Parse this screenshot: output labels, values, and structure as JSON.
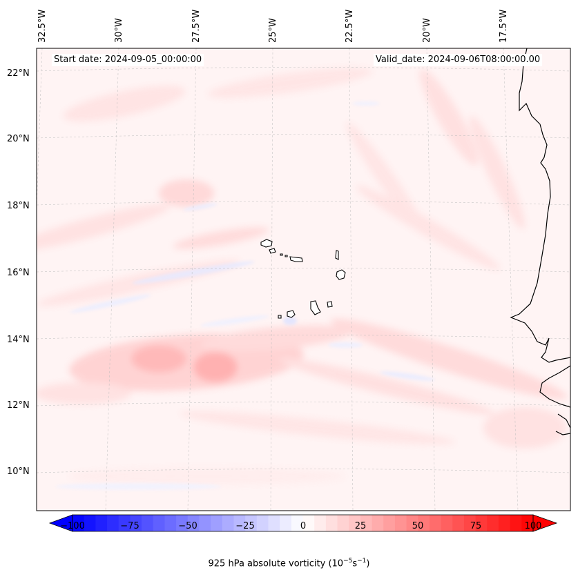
{
  "map": {
    "start_label": "Start date: 2024-09-05_00:00:00",
    "valid_label": "Valid_date: 2024-09-06T08:00:00.00",
    "lon_labels": [
      "32.5°W",
      "30°W",
      "27.5°W",
      "25°W",
      "22.5°W",
      "20°W",
      "17.5°W"
    ],
    "lat_labels": [
      "22°N",
      "20°N",
      "18°N",
      "16°N",
      "14°N",
      "12°N",
      "10°N"
    ],
    "field": "925 hPa absolute vorticity",
    "features": [
      "Cabo Verde islands",
      "West African coastline"
    ]
  },
  "colorbar": {
    "ticks": [
      "−100",
      "−75",
      "−50",
      "−25",
      "0",
      "25",
      "50",
      "75",
      "100"
    ],
    "min": -100,
    "max": 100,
    "label_main": "925 hPa absolute vorticity (10",
    "label_exp1": "−5",
    "label_mid": "s",
    "label_exp2": "−1",
    "label_end": ")"
  },
  "colors": {
    "negative": "#0000ff",
    "zero": "#ffffff",
    "positive": "#ff0000"
  }
}
